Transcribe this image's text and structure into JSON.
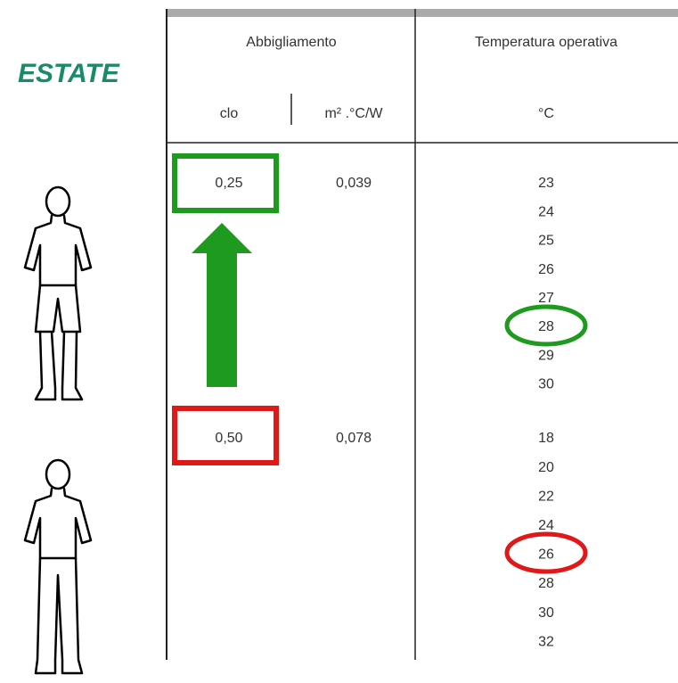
{
  "label": "ESTATE",
  "table": {
    "headers": [
      "Abbigliamento",
      "Temperatura operativa"
    ],
    "subheaders": [
      "clo",
      "m² .°C/W",
      "°C"
    ],
    "rows": [
      {
        "clo": "0,25",
        "resistance": "0,039",
        "temperatures": [
          "23",
          "24",
          "25",
          "26",
          "27",
          "28",
          "29",
          "30"
        ]
      },
      {
        "clo": "0,50",
        "resistance": "0,078",
        "temperatures": [
          "18",
          "20",
          "22",
          "24",
          "26",
          "28",
          "30",
          "32"
        ]
      }
    ]
  }
}
